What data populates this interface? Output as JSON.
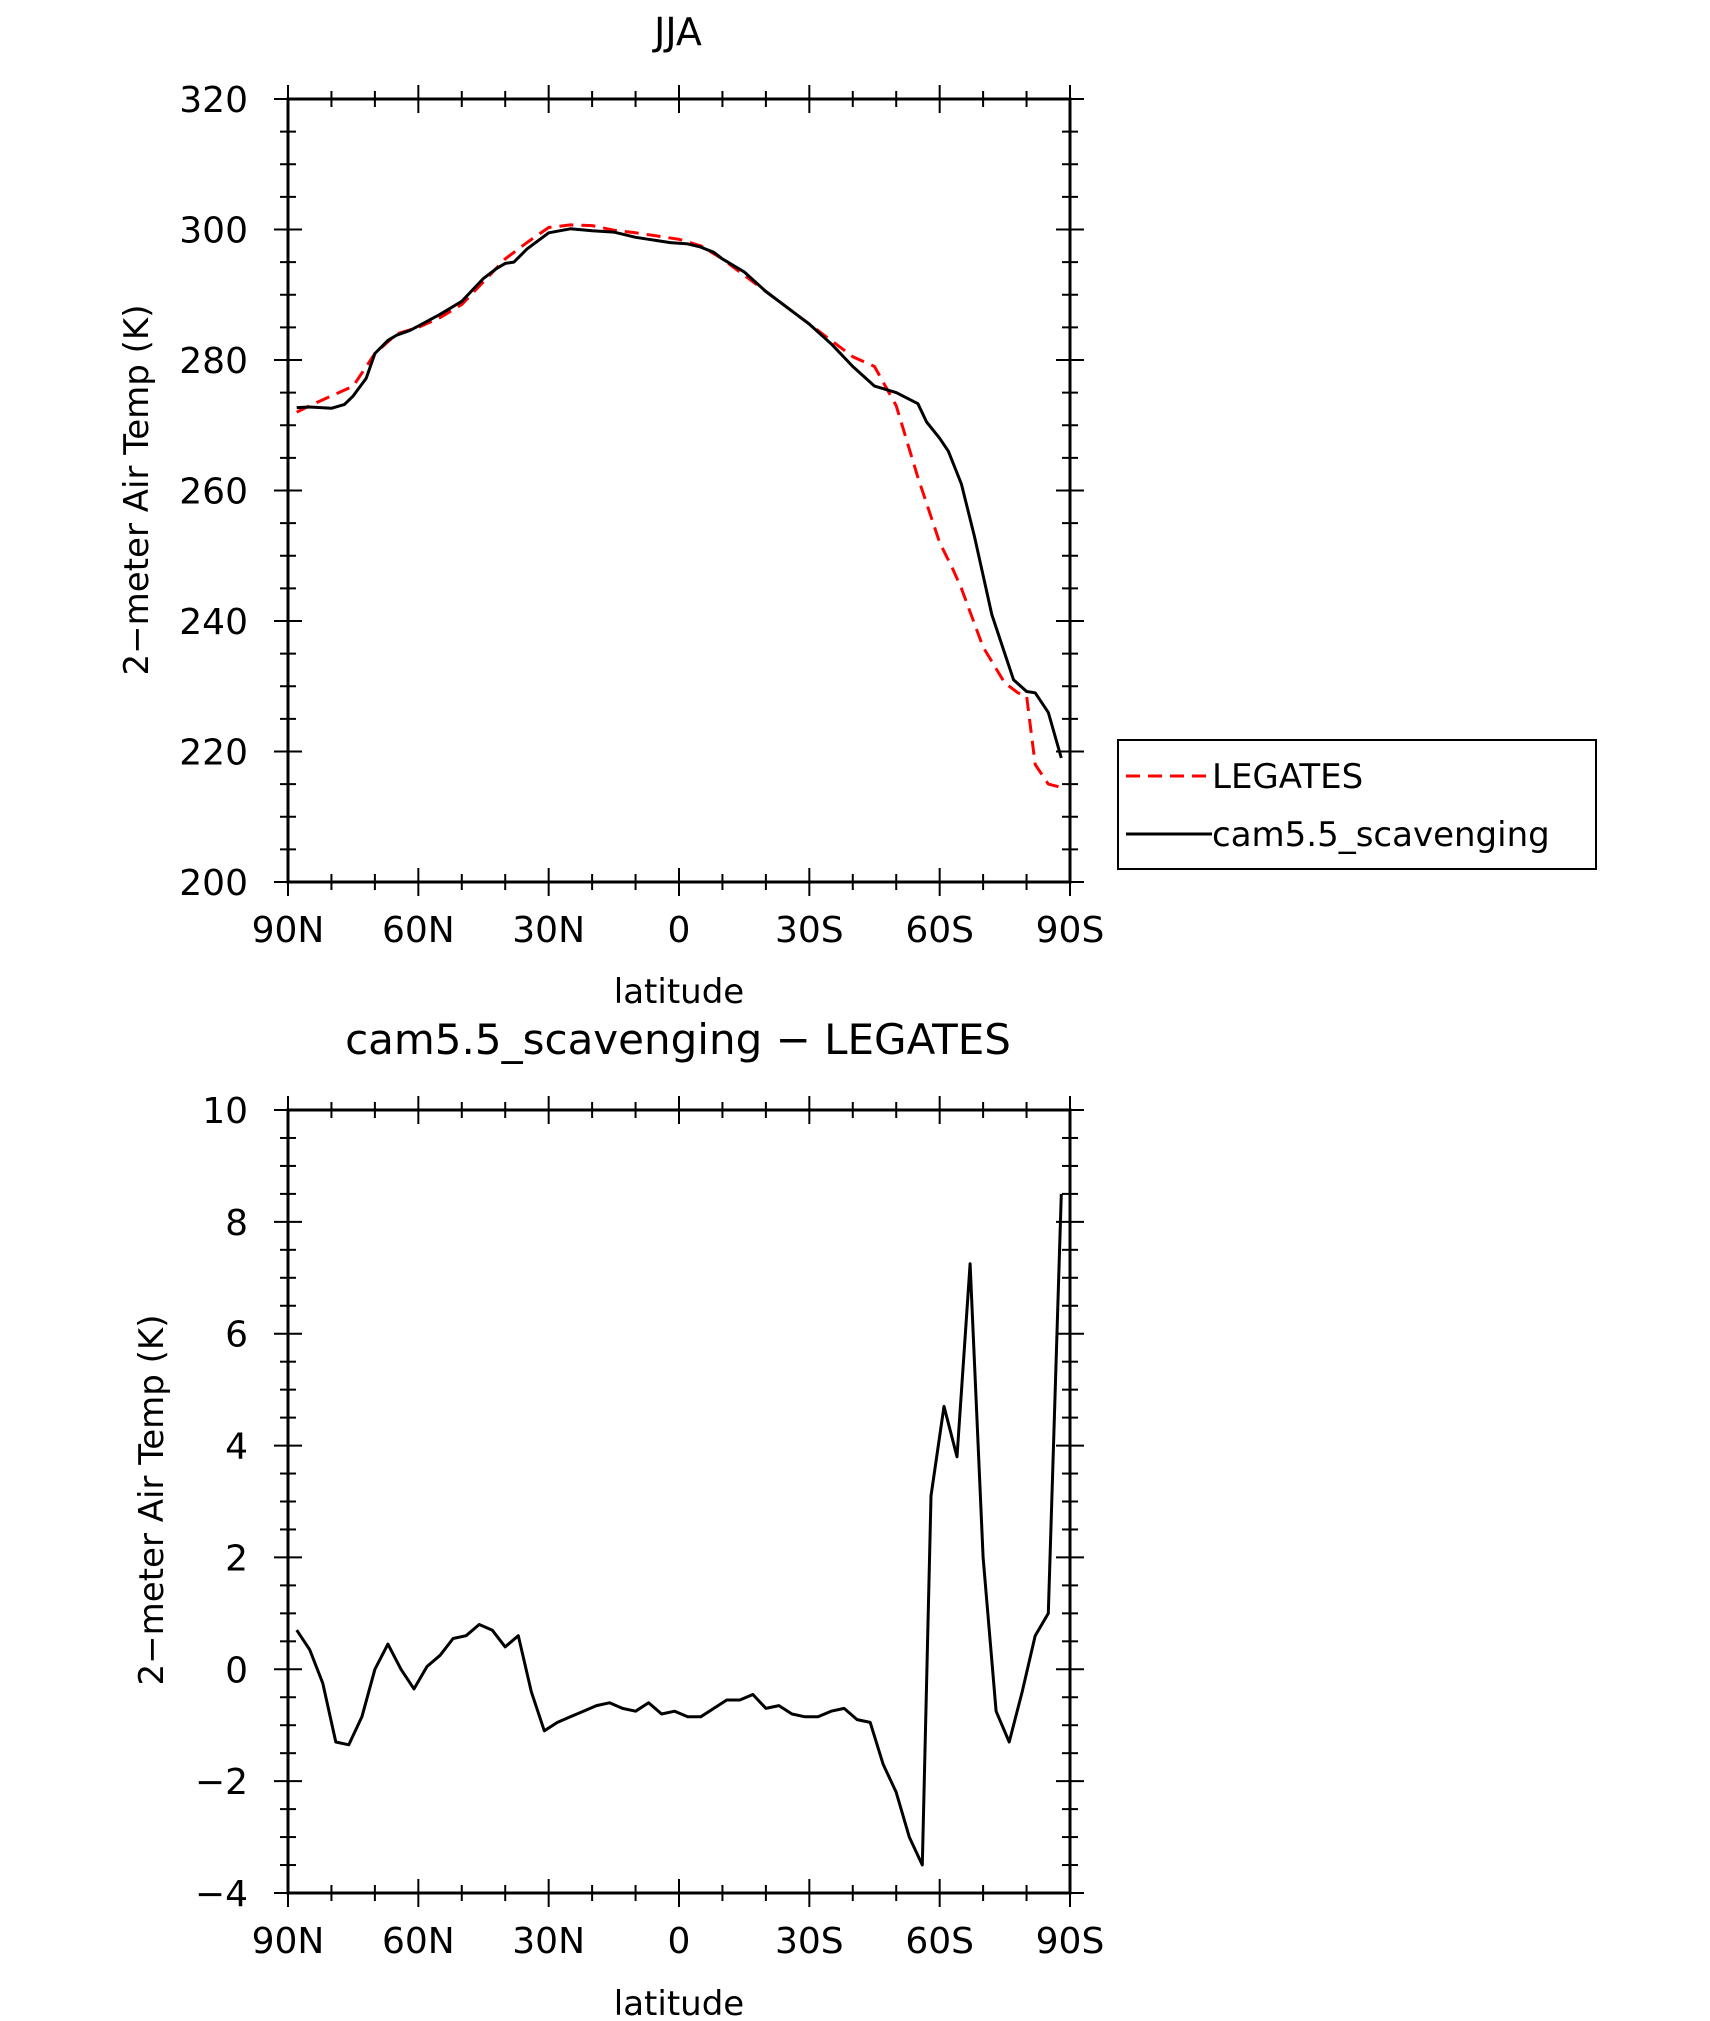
{
  "x_tick_labels": [
    "90N",
    "60N",
    "30N",
    "0",
    "30S",
    "60S",
    "90S"
  ],
  "chart_data": [
    {
      "type": "line",
      "title": "JJA",
      "xlabel": "latitude",
      "ylabel": "2−meter Air Temp (K)",
      "xlim": [
        90,
        -90
      ],
      "ylim": [
        200,
        320
      ],
      "x_ticks": [
        90,
        60,
        30,
        0,
        -30,
        -60,
        -90
      ],
      "y_ticks": [
        200,
        220,
        240,
        260,
        280,
        300,
        320
      ],
      "legend": "outside-right",
      "series": [
        {
          "name": "LEGATES",
          "color": "#ff0000",
          "dash": "dashed",
          "x": [
            88,
            85,
            80,
            75,
            70,
            65,
            60,
            55,
            50,
            45,
            40,
            35,
            30,
            25,
            20,
            15,
            10,
            5,
            0,
            -5,
            -10,
            -15,
            -20,
            -25,
            -30,
            -35,
            -40,
            -45,
            -50,
            -55,
            -60,
            -63,
            -65,
            -70,
            -75,
            -78,
            -80,
            -82,
            -85,
            -88
          ],
          "y": [
            272.0,
            273.0,
            274.5,
            276.0,
            281.0,
            284.0,
            285.0,
            286.5,
            288.5,
            292.0,
            295.5,
            298.0,
            300.3,
            300.7,
            300.6,
            299.9,
            299.5,
            299.0,
            298.5,
            297.5,
            295.5,
            293.0,
            290.5,
            288.0,
            285.5,
            283.0,
            280.5,
            279.0,
            273.0,
            262.0,
            252.0,
            248.0,
            245.0,
            236.0,
            230.5,
            229.0,
            228.5,
            218.0,
            215.0,
            214.5
          ]
        },
        {
          "name": "cam5.5_scavenging",
          "color": "#000000",
          "dash": "solid",
          "x": [
            88,
            85,
            80,
            77,
            75,
            72,
            70,
            67,
            65,
            62,
            60,
            55,
            50,
            45,
            42,
            40,
            38,
            35,
            30,
            25,
            20,
            15,
            10,
            7,
            5,
            2,
            0,
            -2,
            -5,
            -8,
            -10,
            -15,
            -20,
            -25,
            -30,
            -35,
            -40,
            -45,
            -50,
            -55,
            -57,
            -60,
            -62,
            -65,
            -68,
            -70,
            -72,
            -75,
            -77,
            -80,
            -82,
            -85,
            -88
          ],
          "y": [
            272.7,
            272.8,
            272.6,
            273.2,
            274.5,
            277.2,
            281.0,
            283.0,
            283.8,
            284.5,
            285.2,
            287.0,
            289.0,
            292.5,
            294.0,
            294.8,
            295.0,
            297.0,
            299.5,
            300.1,
            299.8,
            299.6,
            298.8,
            298.5,
            298.3,
            298.0,
            297.9,
            297.8,
            297.3,
            296.5,
            295.5,
            293.5,
            290.5,
            288.0,
            285.5,
            282.5,
            279.0,
            276.0,
            275.0,
            273.3,
            270.5,
            268.0,
            266.0,
            261.0,
            253.0,
            247.0,
            241.0,
            235.0,
            231.0,
            229.2,
            229.0,
            226.0,
            219.0
          ]
        }
      ]
    },
    {
      "type": "line",
      "title": "cam5.5_scavenging − LEGATES",
      "xlabel": "latitude",
      "ylabel": "2−meter Air Temp (K)",
      "xlim": [
        90,
        -90
      ],
      "ylim": [
        -4,
        10
      ],
      "x_ticks": [
        90,
        60,
        30,
        0,
        -30,
        -60,
        -90
      ],
      "y_ticks": [
        -4,
        -2,
        0,
        2,
        4,
        6,
        8,
        10
      ],
      "y_tick_labels": [
        "−4",
        "−2",
        "0",
        "2",
        "4",
        "6",
        "8",
        "10"
      ],
      "series": [
        {
          "color": "#000000",
          "dash": "solid",
          "x": [
            88,
            85,
            82,
            79,
            76,
            73,
            70,
            67,
            64,
            61,
            58,
            55,
            52,
            49,
            46,
            43,
            40,
            37,
            34,
            31,
            28,
            25,
            22,
            19,
            16,
            13,
            10,
            7,
            4,
            1,
            -2,
            -5,
            -8,
            -11,
            -14,
            -17,
            -20,
            -23,
            -26,
            -29,
            -32,
            -35,
            -38,
            -41,
            -44,
            -47,
            -50,
            -53,
            -56,
            -58,
            -61,
            -64,
            -67,
            -70,
            -73,
            -76,
            -79,
            -82,
            -85,
            -88
          ],
          "y": [
            0.7,
            0.35,
            -0.25,
            -1.3,
            -1.35,
            -0.85,
            0.0,
            0.45,
            0.0,
            -0.35,
            0.05,
            0.25,
            0.55,
            0.6,
            0.8,
            0.7,
            0.4,
            0.6,
            -0.4,
            -1.1,
            -0.95,
            -0.85,
            -0.75,
            -0.65,
            -0.6,
            -0.7,
            -0.75,
            -0.6,
            -0.8,
            -0.75,
            -0.85,
            -0.85,
            -0.7,
            -0.55,
            -0.55,
            -0.45,
            -0.7,
            -0.65,
            -0.8,
            -0.85,
            -0.85,
            -0.75,
            -0.7,
            -0.9,
            -0.95,
            -1.7,
            -2.2,
            -3.0,
            -3.5,
            3.1,
            4.7,
            3.8,
            7.25,
            2.0,
            -0.75,
            -1.3,
            -0.4,
            0.6,
            1.0,
            8.5
          ]
        }
      ]
    }
  ],
  "legend": {
    "items": [
      "LEGATES",
      "cam5.5_scavenging"
    ]
  }
}
